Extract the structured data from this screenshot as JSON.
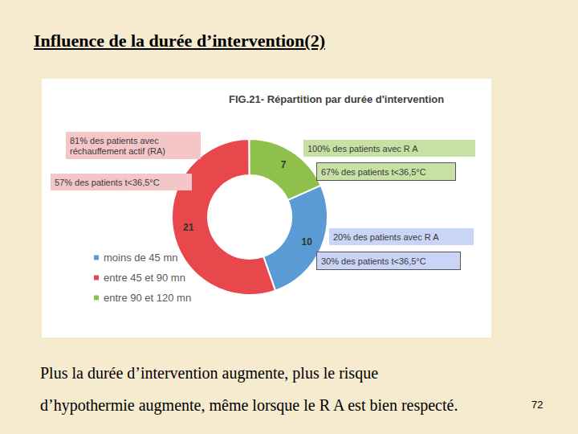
{
  "title": "Influence de la durée d’intervention(2)",
  "caption": [
    "Plus la durée d’intervention augmente, plus le risque",
    "d’hypothermie augmente, même lorsque le R A est bien respecté."
  ],
  "page_number": 72,
  "chart_data": {
    "type": "donut",
    "title": "FIG.21- Répartition par durée d'intervention",
    "categories": [
      "moins de 45 mn",
      "entre 45 et 90 mn",
      "entre 90 et 120 mn"
    ],
    "values": [
      10,
      21,
      7
    ],
    "colors": [
      "#5b9bd5",
      "#e8474c",
      "#8fc04c"
    ],
    "data_labels": true,
    "legend": "bottom-left",
    "annotations": [
      {
        "text": "81% des patients avec réchauffement actif (RA)",
        "category": "entre 45 et 90 mn"
      },
      {
        "text": "57% des patients t<36,5°C",
        "category": "entre 45 et 90 mn"
      },
      {
        "text": "100% des patients avec R A",
        "category": "entre 90 et 120 mn"
      },
      {
        "text": "67% des patients t<36,5°C",
        "category": "entre 90 et 120 mn"
      },
      {
        "text": "20% des patients avec R A",
        "category": "moins de 45 mn"
      },
      {
        "text": "30% des patients t<36,5°C",
        "category": "moins de 45 mn"
      }
    ]
  }
}
